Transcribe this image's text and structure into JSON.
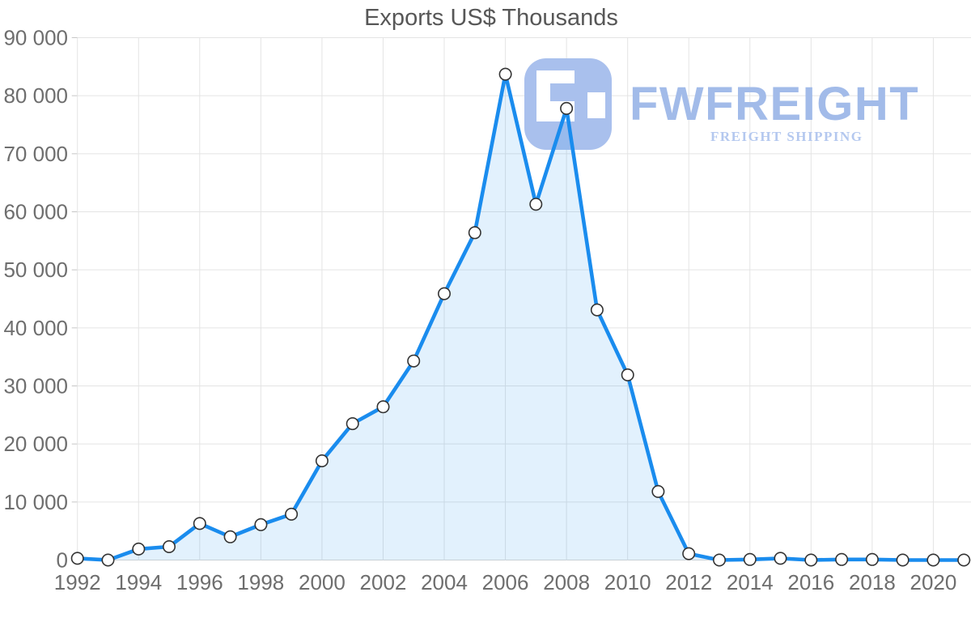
{
  "chart_data": {
    "type": "area",
    "title": "Exports US$ Thousands",
    "x": [
      1992,
      1993,
      1994,
      1995,
      1996,
      1997,
      1998,
      1999,
      2000,
      2001,
      2002,
      2003,
      2004,
      2005,
      2006,
      2007,
      2008,
      2009,
      2010,
      2011,
      2012,
      2013,
      2014,
      2015,
      2016,
      2017,
      2018,
      2019,
      2020,
      2021
    ],
    "series": [
      {
        "name": "Exports US$ Thousands",
        "values": [
          300,
          0,
          1900,
          2300,
          6300,
          4000,
          6100,
          7900,
          17100,
          23500,
          26400,
          34300,
          45900,
          56400,
          83700,
          61300,
          77800,
          43100,
          31900,
          11800,
          1100,
          0,
          100,
          300,
          0,
          100,
          100,
          0,
          0,
          0
        ]
      }
    ],
    "xlabel": "",
    "ylabel": "",
    "ylim": [
      0,
      90000
    ],
    "xlim": [
      1992,
      2021
    ],
    "grid": true,
    "legend": false,
    "y_tick_values": [
      0,
      10000,
      20000,
      30000,
      40000,
      50000,
      60000,
      70000,
      80000,
      90000
    ],
    "y_tick_labels": [
      "0",
      "10 000",
      "20 000",
      "30 000",
      "40 000",
      "50 000",
      "60 000",
      "70 000",
      "80 000",
      "90 000"
    ],
    "x_tick_values": [
      1992,
      1994,
      1996,
      1998,
      2000,
      2002,
      2004,
      2006,
      2008,
      2010,
      2012,
      2014,
      2016,
      2018,
      2020
    ],
    "x_tick_labels": [
      "1992",
      "1994",
      "1996",
      "1998",
      "2000",
      "2002",
      "2004",
      "2006",
      "2008",
      "2010",
      "2012",
      "2014",
      "2016",
      "2018",
      "2020"
    ],
    "colors": {
      "line": "#1a8cee",
      "area": "rgba(30,144,240,0.13)",
      "marker_fill": "#ffffff",
      "marker_stroke": "#333333",
      "grid": "#e4e4e4",
      "axis_line": "#d4d4d4",
      "tick": "#c6c6c6",
      "label": "#6e6e6e",
      "title": "#575757"
    }
  },
  "watermark": {
    "brand": "FWFREIGHT",
    "tagline": "FREIGHT SHIPPING",
    "icon": "fwfreight-logo-icon",
    "colors": {
      "icon": "#a9c0ed",
      "brand": "#a2bbe9",
      "tagline": "#b4c8ef"
    }
  }
}
